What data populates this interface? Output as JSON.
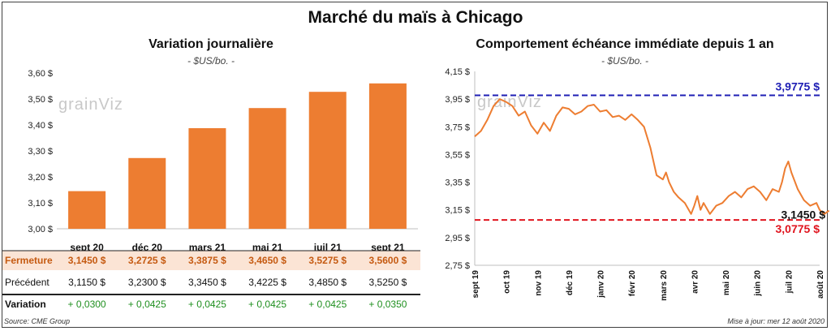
{
  "title": "Marché du maïs à Chicago",
  "source": "Source: CME Group",
  "updated": "Mise à jour: mer 12 août 2020",
  "watermark": "grainViz",
  "colors": {
    "bar": "#ed7d31",
    "line": "#ed7d31",
    "high": "#1f1fb4",
    "low": "#e0141e",
    "positive": "#1f8f1f",
    "fermeture_bg": "#fbe4d5"
  },
  "chart_data": [
    {
      "type": "bar",
      "title": "Variation journalière",
      "ylabel": "- $US/bo. -",
      "categories": [
        "sept 20",
        "déc 20",
        "mars 21",
        "mai 21",
        "juil 21",
        "sept 21"
      ],
      "values": [
        3.145,
        3.2725,
        3.3875,
        3.465,
        3.5275,
        3.56
      ],
      "ylim": [
        3.0,
        3.6
      ],
      "yticks": [
        "3,00 $",
        "3,10 $",
        "3,20 $",
        "3,30 $",
        "3,40 $",
        "3,50 $",
        "3,60 $"
      ],
      "grid": false,
      "table": {
        "rows": [
          {
            "label": "Fermeture",
            "values": [
              "3,1450  $",
              "3,2725  $",
              "3,3875  $",
              "3,4650  $",
              "3,5275  $",
              "3,5600  $"
            ]
          },
          {
            "label": "Précédent",
            "values": [
              "3,1150  $",
              "3,2300  $",
              "3,3450  $",
              "3,4225  $",
              "3,4850  $",
              "3,5250  $"
            ]
          },
          {
            "label": "Variation",
            "values": [
              "+ 0,0300",
              "+ 0,0425",
              "+ 0,0425",
              "+ 0,0425",
              "+ 0,0425",
              "+ 0,0350"
            ]
          }
        ]
      }
    },
    {
      "type": "line",
      "title": "Comportement  échéance immédiate depuis 1 an",
      "ylabel": "- $US/bo. -",
      "ylim": [
        2.75,
        4.15
      ],
      "yticks": [
        "2,75 $",
        "2,95 $",
        "3,15 $",
        "3,35 $",
        "3,55 $",
        "3,75 $",
        "3,95 $",
        "4,15 $"
      ],
      "xticks": [
        "sept 19",
        "oct 19",
        "nov 19",
        "déc 19",
        "janv 20",
        "févr 20",
        "mars 20",
        "avr 20",
        "mai 20",
        "juin 20",
        "juil 20",
        "août 20"
      ],
      "high": {
        "value": 3.9775,
        "label": "3,9775 $"
      },
      "low": {
        "value": 3.0775,
        "label": "3,0775 $"
      },
      "last": {
        "value": 3.145,
        "label": "3,1450 $"
      },
      "series": [
        {
          "x": [
            0,
            0.2,
            0.4,
            0.6,
            0.8,
            1.0,
            1.2,
            1.4,
            1.6,
            1.8,
            2.0,
            2.2,
            2.4,
            2.6,
            2.8,
            3.0,
            3.2,
            3.4,
            3.6,
            3.8,
            4.0,
            4.2,
            4.4,
            4.6,
            4.8,
            5.0,
            5.2,
            5.4,
            5.6,
            5.8,
            6.0,
            6.1,
            6.2,
            6.35,
            6.5,
            6.7,
            6.9,
            7.0,
            7.1,
            7.2,
            7.3,
            7.5,
            7.7,
            7.9,
            8.1,
            8.3,
            8.5,
            8.7,
            8.9,
            9.1,
            9.3,
            9.5,
            9.7,
            9.8,
            9.9,
            10.0,
            10.1,
            10.3,
            10.5,
            10.7,
            10.9,
            11.0,
            11.15,
            11.3
          ],
          "y": [
            3.68,
            3.72,
            3.8,
            3.9,
            3.95,
            3.93,
            3.9,
            3.83,
            3.86,
            3.76,
            3.7,
            3.78,
            3.72,
            3.83,
            3.89,
            3.88,
            3.84,
            3.86,
            3.9,
            3.91,
            3.86,
            3.87,
            3.82,
            3.83,
            3.8,
            3.84,
            3.8,
            3.75,
            3.6,
            3.4,
            3.37,
            3.42,
            3.35,
            3.28,
            3.24,
            3.2,
            3.12,
            3.18,
            3.25,
            3.15,
            3.2,
            3.12,
            3.18,
            3.2,
            3.25,
            3.28,
            3.24,
            3.3,
            3.32,
            3.28,
            3.22,
            3.3,
            3.28,
            3.35,
            3.45,
            3.5,
            3.42,
            3.3,
            3.22,
            3.18,
            3.2,
            3.15,
            3.12,
            3.145
          ]
        }
      ]
    }
  ]
}
